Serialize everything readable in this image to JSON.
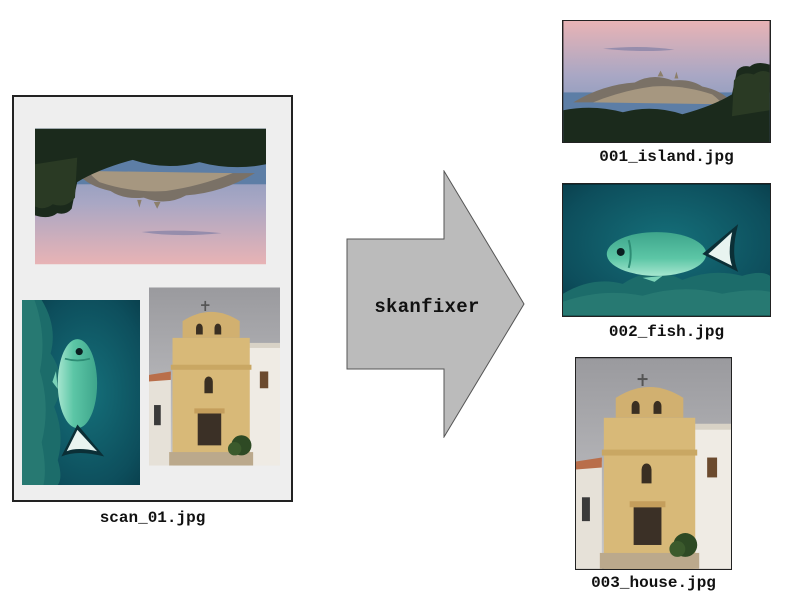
{
  "scan": {
    "filename": "scan_01.jpg"
  },
  "tool": {
    "name": "skanfixer"
  },
  "outputs": [
    {
      "filename": "001_island.jpg",
      "subject": "island"
    },
    {
      "filename": "002_fish.jpg",
      "subject": "fish"
    },
    {
      "filename": "003_house.jpg",
      "subject": "house"
    }
  ],
  "colors": {
    "page_bg": "#eeeeee",
    "arrow_fill": "#bbbbbb",
    "sky_pink": "#e7b4b4",
    "sky_blue": "#7c93b5",
    "sea_teal": "#0f5a66",
    "fish_green": "#49b99a",
    "facade": "#d6b575"
  }
}
